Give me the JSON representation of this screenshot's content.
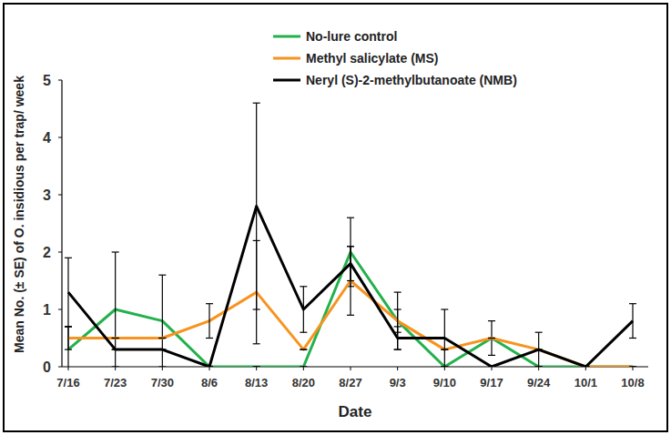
{
  "chart_data": {
    "type": "line",
    "x_label": "Date",
    "y_label": "Mean No. (± SE) of O. insidious per trap/ week",
    "categories": [
      "7/16",
      "7/23",
      "7/30",
      "8/6",
      "8/13",
      "8/20",
      "8/27",
      "9/3",
      "9/10",
      "9/17",
      "9/24",
      "10/1",
      "10/8"
    ],
    "series": [
      {
        "name": "No-lure control",
        "color": "#22b14c",
        "values": [
          0.3,
          1.0,
          0.8,
          0,
          0,
          0,
          2.0,
          0.8,
          0,
          0.5,
          0,
          0,
          0
        ],
        "errors": [
          0.4,
          1.0,
          0.8,
          0,
          0,
          0,
          0.6,
          0.5,
          0,
          0.3,
          0,
          0,
          0
        ]
      },
      {
        "name": "Methyl salicylate (MS)",
        "color": "#f7931e",
        "values": [
          0.5,
          0.5,
          0.5,
          0.8,
          1.3,
          0.3,
          1.5,
          0.8,
          0.3,
          0.5,
          0.3,
          0,
          0
        ],
        "errors": [
          0.2,
          0,
          0,
          0.3,
          0.9,
          0,
          0.6,
          0.2,
          0,
          0,
          0,
          0,
          0
        ]
      },
      {
        "name": "Neryl (S)-2-methylbutanoate (NMB)",
        "color": "#000000",
        "values": [
          1.3,
          0.3,
          0.3,
          0,
          2.8,
          1.0,
          1.8,
          0.5,
          0.5,
          0,
          0.3,
          0,
          0.8
        ],
        "errors": [
          0.6,
          0,
          0,
          0,
          1.8,
          0.4,
          0.3,
          0.2,
          0.5,
          0,
          0.3,
          0,
          0.3
        ]
      }
    ],
    "ylim": [
      0,
      5
    ],
    "yticks": [
      0,
      1,
      2,
      3,
      4,
      5
    ],
    "legend": "upper center",
    "grid": false
  }
}
